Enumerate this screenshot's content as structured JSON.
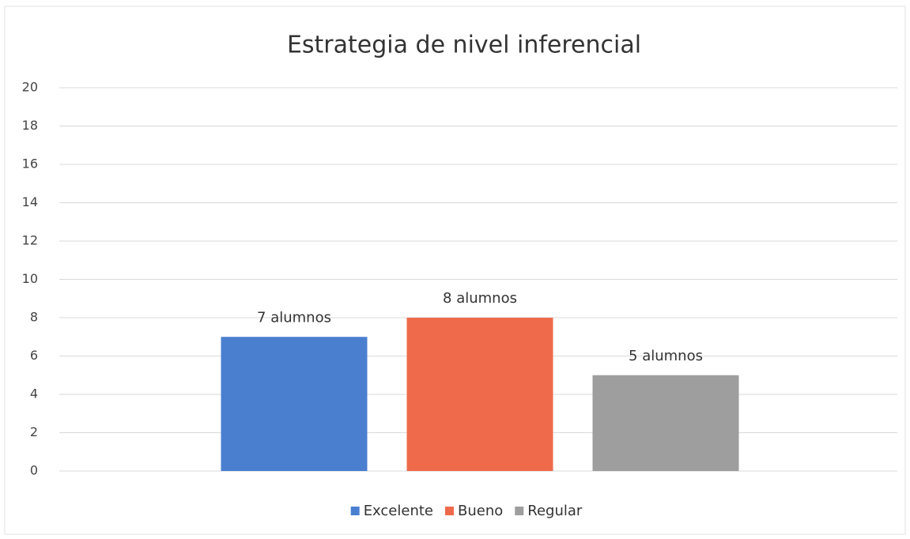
{
  "chart_data": {
    "type": "bar",
    "title": "Estrategia de nivel inferencial",
    "categories": [
      null
    ],
    "series": [
      {
        "name": "Excelente",
        "color": "#4a7fd0",
        "values": [
          7
        ],
        "value_labels": [
          "7 alumnos"
        ]
      },
      {
        "name": "Bueno",
        "color": "#ee6a4a",
        "values": [
          8
        ],
        "value_labels": [
          "8 alumnos"
        ]
      },
      {
        "name": "Regular",
        "color": "#9e9e9e",
        "values": [
          5
        ],
        "value_labels": [
          "5 alumnos"
        ]
      }
    ],
    "ylim": [
      0,
      20
    ],
    "yticks": [
      0,
      2,
      4,
      6,
      8,
      10,
      12,
      14,
      16,
      18,
      20
    ],
    "grid": true,
    "legend": "bottom"
  }
}
